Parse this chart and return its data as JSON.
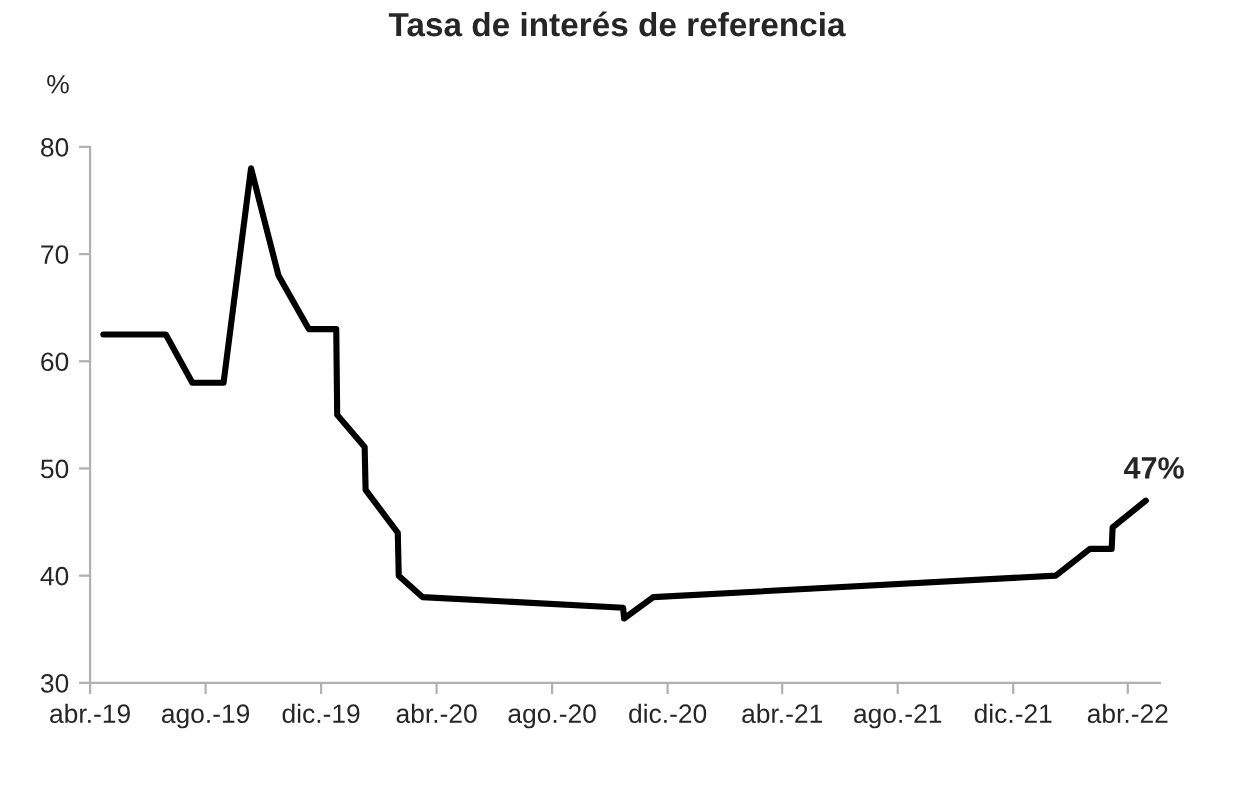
{
  "chart_data": {
    "type": "line",
    "title": "Tasa de interés de referencia",
    "ylabel": "%",
    "x": [
      "2019-04-15",
      "2019-06-20",
      "2019-07-18",
      "2019-08-20",
      "2019-09-18",
      "2019-10-17",
      "2019-11-18",
      "2019-12-17",
      "2019-12-18",
      "2020-01-16",
      "2020-01-17",
      "2020-02-20",
      "2020-02-21",
      "2020-03-17",
      "2020-10-15",
      "2020-10-16",
      "2020-11-16",
      "2022-01-15",
      "2022-02-20",
      "2022-03-15",
      "2022-03-16",
      "2022-04-20"
    ],
    "series": [
      {
        "color": "#000000",
        "values": [
          62.5,
          62.5,
          58,
          58,
          78,
          68,
          63,
          63,
          55,
          52,
          48,
          44,
          40,
          38,
          37,
          36,
          38,
          40,
          42.5,
          42.5,
          44.5,
          47
        ]
      }
    ],
    "annotations": [
      {
        "text": "47%",
        "x": "2022-04-20",
        "y": 47
      }
    ],
    "xlim": [
      "2019-04-01",
      "2022-05-05"
    ],
    "xticks": [
      {
        "value": "2019-04-01",
        "label": "abr.-19"
      },
      {
        "value": "2019-08-01",
        "label": "ago.-19"
      },
      {
        "value": "2019-12-01",
        "label": "dic.-19"
      },
      {
        "value": "2020-04-01",
        "label": "abr.-20"
      },
      {
        "value": "2020-08-01",
        "label": "ago.-20"
      },
      {
        "value": "2020-12-01",
        "label": "dic.-20"
      },
      {
        "value": "2021-04-01",
        "label": "abr.-21"
      },
      {
        "value": "2021-08-01",
        "label": "ago.-21"
      },
      {
        "value": "2021-12-01",
        "label": "dic.-21"
      },
      {
        "value": "2022-04-01",
        "label": "abr.-22"
      }
    ],
    "ylim": [
      30,
      80
    ],
    "yticks": [
      30,
      40,
      50,
      60,
      70,
      80
    ],
    "grid": false,
    "legend": false,
    "marker": "none",
    "line_style": "solid"
  }
}
